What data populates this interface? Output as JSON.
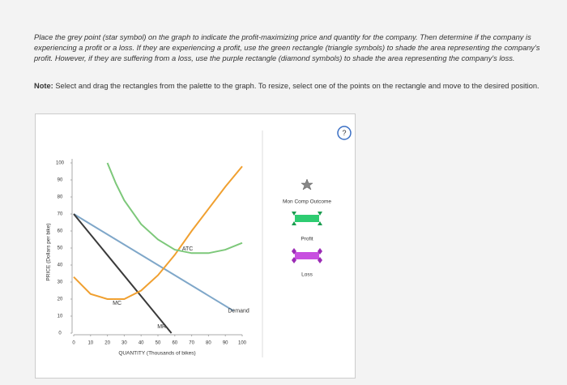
{
  "instructions": "Place the grey point (star symbol) on the graph to indicate the profit-maximizing price and quantity for the company. Then determine if the company is experiencing a profit or a loss. If they are experiencing a profit, use the green rectangle (triangle symbols) to shade the area representing the company's profit. However, if they are suffering from a loss, use the purple rectangle (diamond symbols) to shade the area representing the company's loss.",
  "note": {
    "label": "Note:",
    "text": "Select and drag the rectangles from the palette to the graph. To resize, select one of the points on the rectangle and move to the desired position."
  },
  "help": "?",
  "palette": {
    "point": "Mon Comp Outcome",
    "profit": "Profit",
    "loss": "Loss"
  },
  "chart_data": {
    "type": "line",
    "x_label": "QUANTITY (Thousands of bikes)",
    "y_label": "PRICE (Dollars per bike)",
    "xlim": [
      0,
      100
    ],
    "ylim": [
      0,
      100
    ],
    "xticks": [
      0,
      10,
      20,
      30,
      40,
      50,
      60,
      70,
      80,
      90,
      100
    ],
    "yticks": [
      0,
      10,
      20,
      30,
      40,
      50,
      60,
      70,
      80,
      90,
      100
    ],
    "series": [
      {
        "name": "Demand",
        "color": "#7fa7c9",
        "x": [
          0,
          95
        ],
        "values": [
          70,
          13
        ]
      },
      {
        "name": "MR",
        "color": "#3a3a3a",
        "x": [
          0,
          58
        ],
        "values": [
          70,
          0
        ]
      },
      {
        "name": "MC",
        "color": "#f0a030",
        "x": [
          0,
          10,
          20,
          30,
          40,
          50,
          60,
          70,
          80,
          90,
          100
        ],
        "values": [
          33,
          23,
          20,
          20,
          25,
          34,
          46,
          60,
          73,
          86,
          98
        ]
      },
      {
        "name": "ATC",
        "color": "#7dc87a",
        "x": [
          20,
          25,
          30,
          40,
          50,
          60,
          70,
          80,
          90,
          100
        ],
        "values": [
          100,
          88,
          78,
          64,
          55,
          49,
          47,
          47,
          49,
          53
        ]
      }
    ]
  }
}
